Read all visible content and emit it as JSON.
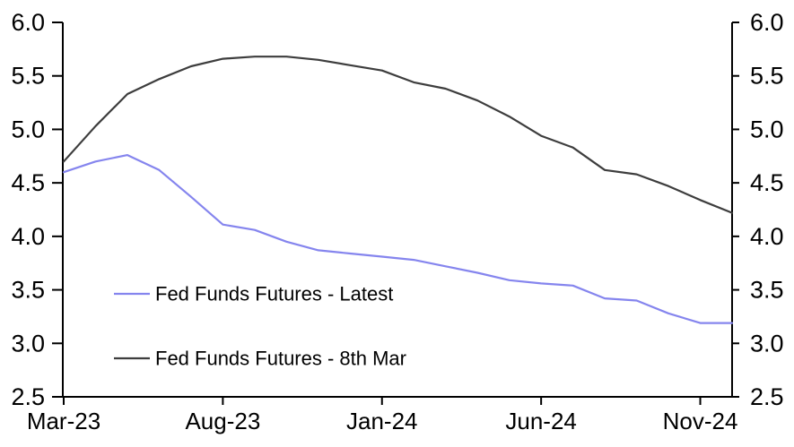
{
  "chart_data": {
    "type": "line",
    "title": "",
    "xlabel": "",
    "ylabel": "",
    "grid": false,
    "ylim": [
      2.5,
      6.0
    ],
    "yticks": [
      2.5,
      3.0,
      3.5,
      4.0,
      4.5,
      5.0,
      5.5,
      6.0
    ],
    "ytick_labels": [
      "2.5",
      "3.0",
      "3.5",
      "4.0",
      "4.5",
      "5.0",
      "5.5",
      "6.0"
    ],
    "y_axis_sides": [
      "left",
      "right"
    ],
    "x": [
      "Mar-23",
      "Apr-23",
      "May-23",
      "Jun-23",
      "Jul-23",
      "Aug-23",
      "Sep-23",
      "Oct-23",
      "Nov-23",
      "Dec-23",
      "Jan-24",
      "Feb-24",
      "Mar-24",
      "Apr-24",
      "May-24",
      "Jun-24",
      "Jul-24",
      "Aug-24",
      "Sep-24",
      "Oct-24",
      "Nov-24",
      "Dec-24"
    ],
    "xtick_labels": [
      "Mar-23",
      "Aug-23",
      "Jan-24",
      "Jun-24",
      "Nov-24"
    ],
    "xtick_indices": [
      0,
      5,
      10,
      15,
      20
    ],
    "series": [
      {
        "name": "Fed Funds Futures - Latest",
        "color": "#8585ee",
        "values": [
          4.6,
          4.7,
          4.76,
          4.62,
          4.37,
          4.11,
          4.06,
          3.95,
          3.87,
          3.84,
          3.81,
          3.78,
          3.72,
          3.66,
          3.59,
          3.56,
          3.54,
          3.42,
          3.4,
          3.28,
          3.19,
          3.19
        ]
      },
      {
        "name": "Fed Funds Futures - 8th Mar",
        "color": "#3d3d3d",
        "values": [
          4.7,
          5.03,
          5.33,
          5.47,
          5.59,
          5.66,
          5.68,
          5.68,
          5.65,
          5.6,
          5.55,
          5.44,
          5.38,
          5.27,
          5.12,
          4.94,
          4.83,
          4.62,
          4.58,
          4.47,
          4.34,
          4.22
        ]
      }
    ],
    "legend_position": "inside-lower-left",
    "axis_color": "#000000",
    "text_color": "#000000",
    "background_color": "#ffffff"
  }
}
